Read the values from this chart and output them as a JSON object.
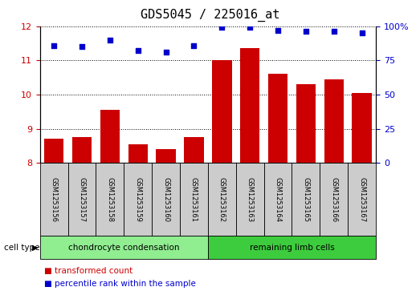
{
  "title": "GDS5045 / 225016_at",
  "samples": [
    "GSM1253156",
    "GSM1253157",
    "GSM1253158",
    "GSM1253159",
    "GSM1253160",
    "GSM1253161",
    "GSM1253162",
    "GSM1253163",
    "GSM1253164",
    "GSM1253165",
    "GSM1253166",
    "GSM1253167"
  ],
  "bar_values": [
    8.7,
    8.75,
    9.55,
    8.55,
    8.4,
    8.75,
    11.0,
    11.35,
    10.6,
    10.3,
    10.45,
    10.05
  ],
  "percentile_values": [
    86,
    85,
    90,
    82,
    81,
    86,
    99,
    99,
    97,
    96,
    96,
    95
  ],
  "bar_color": "#cc0000",
  "dot_color": "#0000cc",
  "ylim_left": [
    8,
    12
  ],
  "ylim_right": [
    0,
    100
  ],
  "yticks_left": [
    8,
    9,
    10,
    11,
    12
  ],
  "yticks_right": [
    0,
    25,
    50,
    75,
    100
  ],
  "ytick_labels_right": [
    "0",
    "25",
    "50",
    "75",
    "100%"
  ],
  "cell_type_groups": [
    {
      "label": "chondrocyte condensation",
      "start": 0,
      "end": 6,
      "color": "#90ee90"
    },
    {
      "label": "remaining limb cells",
      "start": 6,
      "end": 12,
      "color": "#3dcc3d"
    }
  ],
  "cell_type_label": "cell type",
  "legend_items": [
    {
      "label": "transformed count",
      "color": "#cc0000"
    },
    {
      "label": "percentile rank within the sample",
      "color": "#0000cc"
    }
  ],
  "tick_label_color_left": "#cc0000",
  "tick_label_color_right": "#0000cc",
  "title_fontsize": 11,
  "bar_width": 0.7,
  "sample_box_color": "#cccccc",
  "grid_color": "black",
  "dot_size": 22
}
